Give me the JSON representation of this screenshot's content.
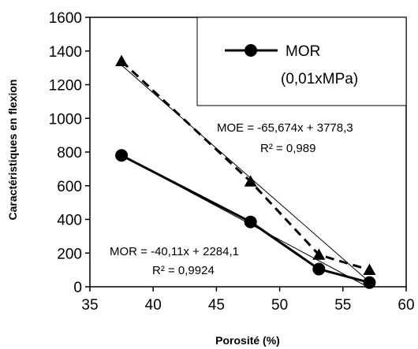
{
  "chart_data": {
    "type": "scatter",
    "title": "",
    "xlabel": "Porosité (%)",
    "ylabel": "Caractéristiques en flexion",
    "xlim": [
      35,
      60
    ],
    "ylim": [
      0,
      1600
    ],
    "x_ticks": [
      35,
      40,
      45,
      50,
      55,
      60
    ],
    "y_ticks": [
      0,
      200,
      400,
      600,
      800,
      1000,
      1200,
      1400,
      1600
    ],
    "x_tick_labels": [
      "35",
      "40",
      "45",
      "50",
      "55",
      "60"
    ],
    "y_tick_labels": [
      "0",
      "200",
      "400",
      "600",
      "800",
      "1000",
      "1200",
      "1400",
      "1600"
    ],
    "grid": false,
    "series": [
      {
        "key": "mor",
        "name": "MOR",
        "name_line2": "(0,01xMPa)",
        "marker": "circle",
        "line": "solid",
        "color": "#000000",
        "points": [
          {
            "x": 37.5,
            "y": 780
          },
          {
            "x": 47.7,
            "y": 385
          },
          {
            "x": 53.1,
            "y": 105
          },
          {
            "x": 57.1,
            "y": 25
          }
        ],
        "trendline": {
          "slope": -40.11,
          "intercept": 2284.1,
          "label": "MOR = -40,11x + 2284,1",
          "r2_label": "R² = 0,9924"
        }
      },
      {
        "key": "moe",
        "marker": "triangle",
        "line": "dashed",
        "color": "#000000",
        "points": [
          {
            "x": 37.5,
            "y": 1340
          },
          {
            "x": 47.7,
            "y": 625
          },
          {
            "x": 53.1,
            "y": 190
          },
          {
            "x": 57.1,
            "y": 100
          }
        ],
        "trendline": {
          "slope": -65.674,
          "intercept": 3778.3,
          "label": "MOE = -65,674x + 3778,3",
          "r2_label": "R² = 0,989"
        }
      }
    ],
    "legend": {
      "placement": "top-right",
      "entries": [
        "MOR",
        "(0,01xMPa)"
      ]
    }
  }
}
